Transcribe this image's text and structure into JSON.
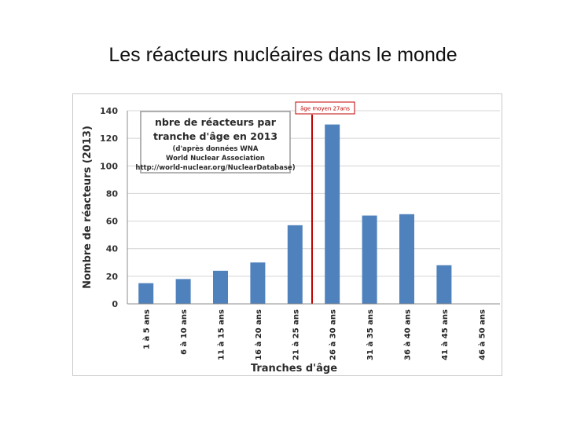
{
  "slide": {
    "title": "Les réacteurs nucléaires dans le monde"
  },
  "chart_data": {
    "type": "bar",
    "categories": [
      "1 à 5 ans",
      "6 à 10 ans",
      "11 à 15 ans",
      "16 à 20 ans",
      "21 à 25 ans",
      "26 à 30 ans",
      "31 à 35 ans",
      "36 à 40 ans",
      "41 à 45 ans",
      "46 à 50 ans"
    ],
    "values": [
      15,
      18,
      24,
      30,
      57,
      130,
      64,
      65,
      28,
      0
    ],
    "xlabel": "Tranches d'âge",
    "ylabel": "Nombre de réacteurs (2013)",
    "ylim": [
      0,
      140
    ],
    "yticks": [
      0,
      20,
      40,
      60,
      80,
      100,
      120,
      140
    ],
    "grid": true,
    "bar_color": "#4f81bd",
    "annotation": {
      "lines": [
        "nbre de réacteurs par",
        "tranche d'âge en 2013",
        "(d'après données WNA",
        "World Nuclear Association",
        "http://world-nuclear.org/NuclearDatabase)"
      ]
    },
    "marker": {
      "label": "âge moyen 27ans",
      "color": "#c00000"
    }
  }
}
